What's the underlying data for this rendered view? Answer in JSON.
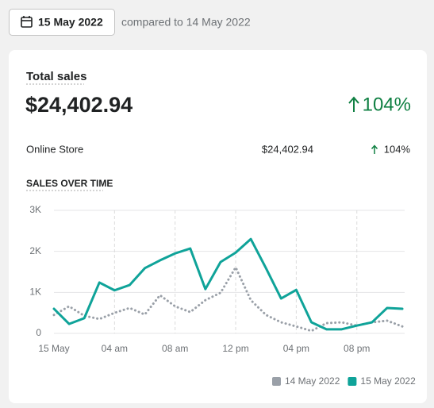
{
  "header": {
    "date_button": "15 May 2022",
    "comparison": "compared to 14 May 2022"
  },
  "card": {
    "title": "Total sales",
    "total": "$24,402.94",
    "change": "104%",
    "rows": [
      {
        "channel": "Online Store",
        "amount": "$24,402.94",
        "change": "104%"
      }
    ],
    "section_title": "SALES OVER TIME"
  },
  "chart_data": {
    "type": "line",
    "x": [
      0,
      1,
      2,
      3,
      4,
      5,
      6,
      7,
      8,
      9,
      10,
      11,
      12,
      13,
      14,
      15,
      16,
      17,
      18,
      19,
      20,
      21,
      22,
      23
    ],
    "xlim": [
      0,
      23
    ],
    "xticks": [
      {
        "value": 0,
        "label": "15 May"
      },
      {
        "value": 4,
        "label": "04 am"
      },
      {
        "value": 8,
        "label": "08 am"
      },
      {
        "value": 12,
        "label": "12 pm"
      },
      {
        "value": 16,
        "label": "04 pm"
      },
      {
        "value": 20,
        "label": "08 pm"
      }
    ],
    "ylim": [
      0,
      3000
    ],
    "yticks": [
      0,
      {
        "value": 1000,
        "label": "1K"
      },
      {
        "value": 2000,
        "label": "2K"
      },
      {
        "value": 3000,
        "label": "3K"
      }
    ],
    "grid": true,
    "series": [
      {
        "name": "14 May 2022",
        "color": "#9aa0a8",
        "style": "dotted",
        "values": [
          450,
          660,
          430,
          350,
          500,
          620,
          460,
          930,
          660,
          520,
          810,
          990,
          1610,
          810,
          450,
          270,
          170,
          60,
          250,
          270,
          190,
          270,
          310,
          170
        ]
      },
      {
        "name": "15 May 2022",
        "color": "#0fa399",
        "style": "solid",
        "values": [
          600,
          230,
          370,
          1240,
          1050,
          1180,
          1590,
          1780,
          1950,
          2070,
          1080,
          1740,
          1970,
          2300,
          1590,
          850,
          1060,
          270,
          100,
          100,
          190,
          270,
          620,
          600
        ]
      }
    ]
  }
}
